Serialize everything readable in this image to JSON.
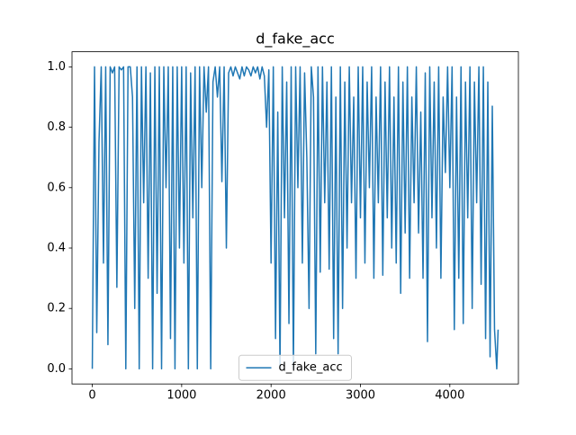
{
  "chart_data": {
    "type": "line",
    "title": "d_fake_acc",
    "x": [
      0,
      25,
      50,
      75,
      100,
      125,
      150,
      175,
      200,
      225,
      250,
      275,
      300,
      325,
      350,
      375,
      400,
      425,
      450,
      475,
      500,
      525,
      550,
      575,
      600,
      625,
      650,
      675,
      700,
      725,
      750,
      775,
      800,
      825,
      850,
      875,
      900,
      925,
      950,
      975,
      1000,
      1025,
      1050,
      1075,
      1100,
      1125,
      1150,
      1175,
      1200,
      1225,
      1250,
      1275,
      1300,
      1325,
      1350,
      1375,
      1400,
      1425,
      1450,
      1475,
      1500,
      1525,
      1550,
      1575,
      1600,
      1625,
      1650,
      1675,
      1700,
      1725,
      1750,
      1775,
      1800,
      1825,
      1850,
      1875,
      1900,
      1925,
      1950,
      1975,
      2000,
      2025,
      2050,
      2075,
      2100,
      2125,
      2150,
      2175,
      2200,
      2225,
      2250,
      2275,
      2300,
      2325,
      2350,
      2375,
      2400,
      2425,
      2450,
      2475,
      2500,
      2525,
      2550,
      2575,
      2600,
      2625,
      2650,
      2675,
      2700,
      2725,
      2750,
      2775,
      2800,
      2825,
      2850,
      2875,
      2900,
      2925,
      2950,
      2975,
      3000,
      3025,
      3050,
      3075,
      3100,
      3125,
      3150,
      3175,
      3200,
      3225,
      3250,
      3275,
      3300,
      3325,
      3350,
      3375,
      3400,
      3425,
      3450,
      3475,
      3500,
      3525,
      3550,
      3575,
      3600,
      3625,
      3650,
      3675,
      3700,
      3725,
      3750,
      3775,
      3800,
      3825,
      3850,
      3875,
      3900,
      3925,
      3950,
      3975,
      4000,
      4025,
      4050,
      4075,
      4100,
      4125,
      4150,
      4175,
      4200,
      4225,
      4250,
      4275,
      4300,
      4325,
      4350,
      4375,
      4400,
      4425,
      4450,
      4475,
      4500,
      4525,
      4540
    ],
    "series": [
      {
        "name": "d_fake_acc",
        "color": "#1f77b4",
        "values": [
          0,
          1,
          0.12,
          0.75,
          1,
          0.35,
          1,
          0.08,
          1,
          0.98,
          1,
          0.27,
          1,
          0.99,
          1,
          0,
          1,
          1,
          0.9,
          0.2,
          1,
          0,
          1,
          0.55,
          1,
          0.3,
          0.98,
          0,
          1,
          0.25,
          1,
          0,
          1,
          0.6,
          1,
          0.1,
          1,
          0,
          1,
          0.4,
          1,
          0.35,
          1,
          0,
          0.98,
          0.5,
          1,
          0,
          1,
          0.6,
          1,
          0.85,
          1,
          0,
          0.95,
          1,
          0.9,
          1,
          0.62,
          1,
          0.4,
          0.98,
          1,
          0.97,
          1,
          0.98,
          0.96,
          1,
          0.97,
          1,
          0.99,
          0.97,
          1,
          0.98,
          1,
          0.96,
          1,
          0.97,
          0.8,
          0.99,
          0.35,
          1,
          0.1,
          0.85,
          0,
          1,
          0.5,
          0.95,
          0.15,
          1,
          0,
          1,
          0.6,
          1,
          0.35,
          0.98,
          0.7,
          0.2,
          1,
          0.9,
          0.05,
          1,
          0.32,
          1,
          0.55,
          0.95,
          0.33,
          1,
          0.1,
          0.9,
          0.05,
          1,
          0.2,
          0.95,
          0.4,
          1,
          0.55,
          0.9,
          0.3,
          1,
          0.5,
          1,
          0.35,
          0.95,
          0.6,
          1,
          0.3,
          0.9,
          0.55,
          1,
          0.31,
          0.95,
          0.5,
          1,
          0.4,
          0.9,
          0.35,
          1,
          0.25,
          0.95,
          0.45,
          1,
          0.3,
          0.9,
          0.55,
          1,
          0.45,
          0.85,
          0.3,
          0.98,
          0.09,
          1,
          0.5,
          0.95,
          0.4,
          1,
          0.3,
          0.9,
          0.65,
          1,
          0.6,
          1,
          0.13,
          0.9,
          0.3,
          1,
          0.15,
          0.95,
          0.5,
          1,
          0.2,
          0.95,
          0.55,
          1,
          0.28,
          1,
          0.1,
          0.95,
          0.04,
          0.87,
          0.13,
          0,
          0.13
        ]
      }
    ],
    "xlim": [
      -227,
      4767
    ],
    "xticks": [
      0,
      1000,
      2000,
      3000,
      4000
    ],
    "ylim": [
      -0.05,
      1.05
    ],
    "yticks": [
      {
        "value": 0,
        "label": "0.0"
      },
      0.2,
      0.4,
      0.6,
      0.8,
      {
        "value": 1,
        "label": "1.0"
      }
    ],
    "legend": "lower center"
  }
}
